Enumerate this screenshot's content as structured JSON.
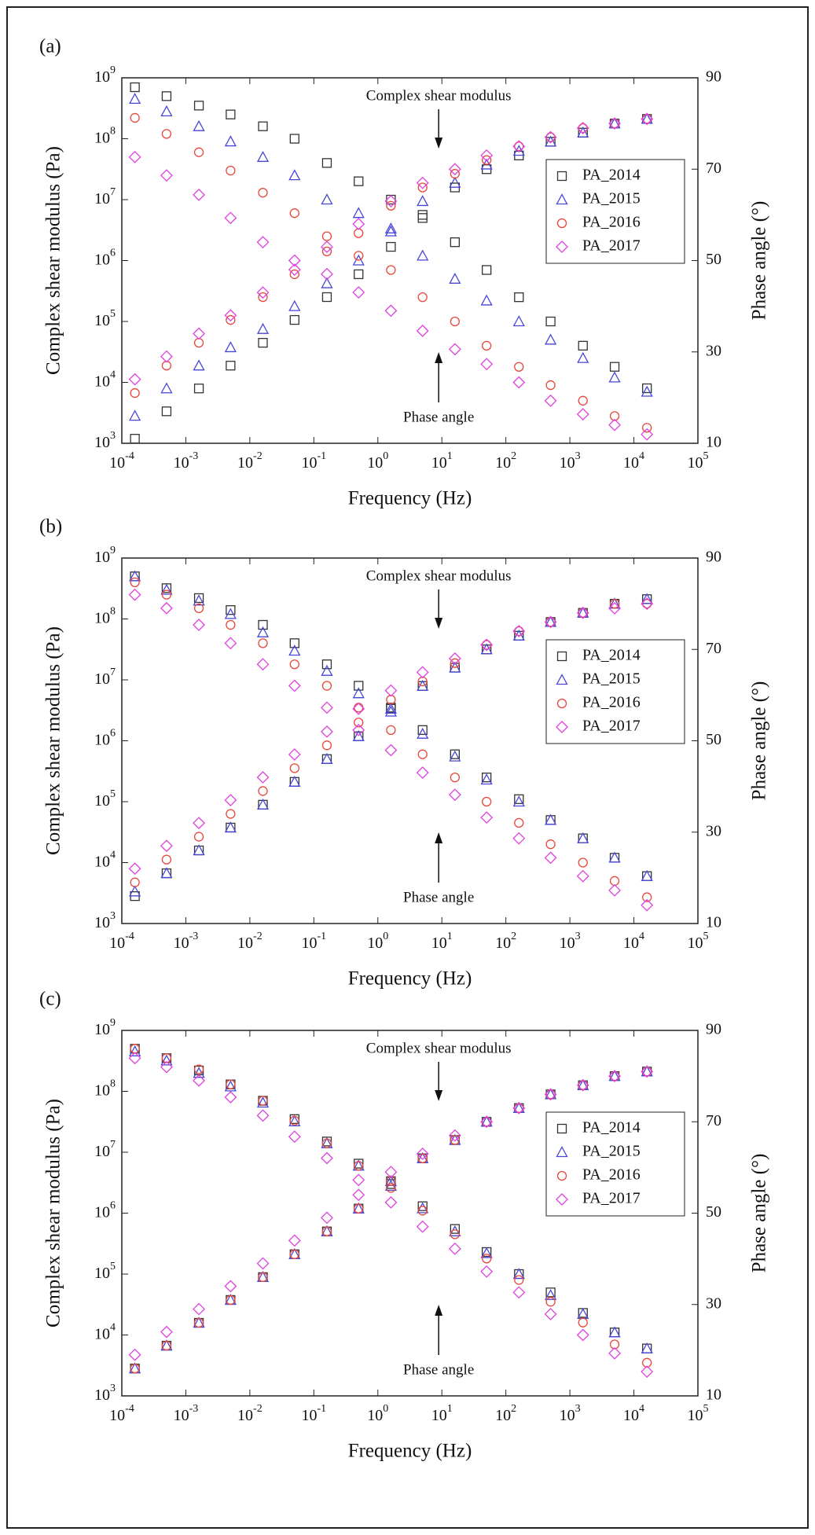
{
  "chart_data": [
    {
      "type": "scatter",
      "panel_label": "(a)",
      "x_label": "Frequency (Hz)",
      "y_label": "Complex shear modulus (Pa)",
      "y2_label": "Phase angle (°)",
      "annotations": [
        "Complex shear modulus",
        "Phase angle"
      ],
      "log_x": true,
      "log_y": true,
      "legend": "right",
      "xlim": [
        0.0001,
        100000
      ],
      "ylim": [
        1000,
        1000000000
      ],
      "y2lim": [
        10,
        90
      ],
      "xticks": [
        {
          "value": 0.0001,
          "label": "10^-4"
        },
        {
          "value": 0.001,
          "label": "10^-3"
        },
        {
          "value": 0.01,
          "label": "10^-2"
        },
        {
          "value": 0.1,
          "label": "10^-1"
        },
        {
          "value": 1,
          "label": "10^0"
        },
        {
          "value": 10,
          "label": "10^1"
        },
        {
          "value": 100,
          "label": "10^2"
        },
        {
          "value": 1000,
          "label": "10^3"
        },
        {
          "value": 10000,
          "label": "10^4"
        },
        {
          "value": 100000,
          "label": "10^5"
        }
      ],
      "yticks": [
        {
          "value": 1000,
          "label": "10^3"
        },
        {
          "value": 10000,
          "label": "10^4"
        },
        {
          "value": 100000,
          "label": "10^5"
        },
        {
          "value": 1000000,
          "label": "10^6"
        },
        {
          "value": 10000000,
          "label": "10^7"
        },
        {
          "value": 100000000,
          "label": "10^8"
        },
        {
          "value": 1000000000,
          "label": "10^9"
        }
      ],
      "y2ticks": [
        10,
        30,
        50,
        70,
        90
      ],
      "x": [
        0.00016,
        0.0005,
        0.0016,
        0.005,
        0.016,
        0.05,
        0.16,
        0.5,
        1.6,
        5,
        16,
        50,
        160,
        500,
        1600,
        5000,
        16000
      ],
      "series": [
        {
          "name": "PA_2014",
          "color": "#333333",
          "marker": "square",
          "values": [
            700000000,
            500000000,
            350000000,
            250000000,
            160000000,
            100000000,
            40000000,
            20000000,
            10000000,
            5000000,
            2000000,
            700000,
            250000,
            100000,
            40000,
            18000,
            8000
          ],
          "values_y2": [
            11,
            17,
            22,
            27,
            32,
            37,
            42,
            47,
            53,
            60,
            66,
            70,
            73,
            76,
            78,
            80,
            81
          ]
        },
        {
          "name": "PA_2015",
          "color": "#4646d8",
          "marker": "triangle",
          "values": [
            450000000,
            280000000,
            160000000,
            90000000,
            50000000,
            25000000,
            10000000,
            6000000,
            3000000,
            1200000,
            500000,
            220000,
            100000,
            50000,
            25000,
            12000,
            7000
          ],
          "values_y2": [
            16,
            22,
            27,
            31,
            35,
            40,
            45,
            50,
            57,
            63,
            67,
            71,
            74,
            76,
            78,
            80,
            81
          ]
        },
        {
          "name": "PA_2016",
          "color": "#e8463a",
          "marker": "circle",
          "values": [
            220000000,
            120000000,
            60000000,
            30000000,
            13000000,
            6000000,
            2500000,
            1200000,
            700000,
            250000,
            100000,
            40000,
            18000,
            9000,
            5000,
            2800,
            1800
          ],
          "values_y2": [
            21,
            27,
            32,
            37,
            42,
            47,
            52,
            56,
            62,
            66,
            69,
            72,
            75,
            77,
            79,
            80,
            81
          ]
        },
        {
          "name": "PA_2017",
          "color": "#e040e0",
          "marker": "diamond",
          "values": [
            50000000,
            25000000,
            12000000,
            5000000,
            2000000,
            1000000,
            600000,
            300000,
            150000,
            70000,
            35000,
            20000,
            10000,
            5000,
            3000,
            2000,
            1400
          ],
          "values_y2": [
            24,
            29,
            34,
            38,
            43,
            48,
            53,
            58,
            63,
            67,
            70,
            73,
            75,
            77,
            79,
            80,
            81
          ]
        }
      ]
    },
    {
      "type": "scatter",
      "panel_label": "(b)",
      "x_label": "Frequency (Hz)",
      "y_label": "Complex shear modulus (Pa)",
      "y2_label": "Phase angle (°)",
      "annotations": [
        "Complex shear modulus",
        "Phase angle"
      ],
      "log_x": true,
      "log_y": true,
      "legend": "right",
      "xlim": [
        0.0001,
        100000
      ],
      "ylim": [
        1000,
        1000000000
      ],
      "y2lim": [
        10,
        90
      ],
      "xticks": [
        {
          "value": 0.0001,
          "label": "10^-4"
        },
        {
          "value": 0.001,
          "label": "10^-3"
        },
        {
          "value": 0.01,
          "label": "10^-2"
        },
        {
          "value": 0.1,
          "label": "10^-1"
        },
        {
          "value": 1,
          "label": "10^0"
        },
        {
          "value": 10,
          "label": "10^1"
        },
        {
          "value": 100,
          "label": "10^2"
        },
        {
          "value": 1000,
          "label": "10^3"
        },
        {
          "value": 10000,
          "label": "10^4"
        },
        {
          "value": 100000,
          "label": "10^5"
        }
      ],
      "yticks": [
        {
          "value": 1000,
          "label": "10^3"
        },
        {
          "value": 10000,
          "label": "10^4"
        },
        {
          "value": 100000,
          "label": "10^5"
        },
        {
          "value": 1000000,
          "label": "10^6"
        },
        {
          "value": 10000000,
          "label": "10^7"
        },
        {
          "value": 100000000,
          "label": "10^8"
        },
        {
          "value": 1000000000,
          "label": "10^9"
        }
      ],
      "y2ticks": [
        10,
        30,
        50,
        70,
        90
      ],
      "x": [
        0.00016,
        0.0005,
        0.0016,
        0.005,
        0.016,
        0.05,
        0.16,
        0.5,
        1.6,
        5,
        16,
        50,
        160,
        500,
        1600,
        5000,
        16000
      ],
      "series": [
        {
          "name": "PA_2014",
          "color": "#333333",
          "marker": "square",
          "values": [
            500000000,
            320000000,
            220000000,
            140000000,
            80000000,
            40000000,
            18000000,
            8000000,
            3500000,
            1500000,
            600000,
            250000,
            110000,
            50000,
            25000,
            12000,
            6000
          ],
          "values_y2": [
            16,
            21,
            26,
            31,
            36,
            41,
            46,
            51,
            57,
            62,
            66,
            70,
            73,
            76,
            78,
            80,
            81
          ]
        },
        {
          "name": "PA_2015",
          "color": "#4646d8",
          "marker": "triangle",
          "values": [
            500000000,
            300000000,
            200000000,
            120000000,
            60000000,
            30000000,
            14000000,
            6000000,
            3000000,
            1300000,
            550000,
            230000,
            100000,
            50000,
            25000,
            12000,
            6000
          ],
          "values_y2": [
            17,
            21,
            26,
            31,
            36,
            41,
            46,
            51,
            57,
            62,
            66,
            70,
            73,
            76,
            78,
            80,
            81
          ]
        },
        {
          "name": "PA_2016",
          "color": "#e8463a",
          "marker": "circle",
          "values": [
            400000000,
            250000000,
            150000000,
            80000000,
            40000000,
            18000000,
            8000000,
            3500000,
            1500000,
            600000,
            250000,
            100000,
            45000,
            20000,
            10000,
            5000,
            2700
          ],
          "values_y2": [
            19,
            24,
            29,
            34,
            39,
            44,
            49,
            54,
            59,
            63,
            67,
            71,
            74,
            76,
            78,
            80,
            80
          ]
        },
        {
          "name": "PA_2017",
          "color": "#e040e0",
          "marker": "diamond",
          "values": [
            250000000,
            150000000,
            80000000,
            40000000,
            18000000,
            8000000,
            3500000,
            1500000,
            700000,
            300000,
            130000,
            55000,
            25000,
            12000,
            6000,
            3500,
            2000
          ],
          "values_y2": [
            22,
            27,
            32,
            37,
            42,
            47,
            52,
            57,
            61,
            65,
            68,
            71,
            74,
            76,
            78,
            79,
            80
          ]
        }
      ]
    },
    {
      "type": "scatter",
      "panel_label": "(c)",
      "x_label": "Frequency (Hz)",
      "y_label": "Complex shear modulus (Pa)",
      "y2_label": "Phase angle (°)",
      "annotations": [
        "Complex shear modulus",
        "Phase angle"
      ],
      "log_x": true,
      "log_y": true,
      "legend": "right",
      "xlim": [
        0.0001,
        100000
      ],
      "ylim": [
        1000,
        1000000000
      ],
      "y2lim": [
        10,
        90
      ],
      "xticks": [
        {
          "value": 0.0001,
          "label": "10^-4"
        },
        {
          "value": 0.001,
          "label": "10^-3"
        },
        {
          "value": 0.01,
          "label": "10^-2"
        },
        {
          "value": 0.1,
          "label": "10^-1"
        },
        {
          "value": 1,
          "label": "10^0"
        },
        {
          "value": 10,
          "label": "10^1"
        },
        {
          "value": 100,
          "label": "10^2"
        },
        {
          "value": 1000,
          "label": "10^3"
        },
        {
          "value": 10000,
          "label": "10^4"
        },
        {
          "value": 100000,
          "label": "10^5"
        }
      ],
      "yticks": [
        {
          "value": 1000,
          "label": "10^3"
        },
        {
          "value": 10000,
          "label": "10^4"
        },
        {
          "value": 100000,
          "label": "10^5"
        },
        {
          "value": 1000000,
          "label": "10^6"
        },
        {
          "value": 10000000,
          "label": "10^7"
        },
        {
          "value": 100000000,
          "label": "10^8"
        },
        {
          "value": 1000000000,
          "label": "10^9"
        }
      ],
      "y2ticks": [
        10,
        30,
        50,
        70,
        90
      ],
      "x": [
        0.00016,
        0.0005,
        0.0016,
        0.005,
        0.016,
        0.05,
        0.16,
        0.5,
        1.6,
        5,
        16,
        50,
        160,
        500,
        1600,
        5000,
        16000
      ],
      "series": [
        {
          "name": "PA_2014",
          "color": "#333333",
          "marker": "square",
          "values": [
            500000000,
            350000000,
            220000000,
            130000000,
            70000000,
            35000000,
            15000000,
            6500000,
            3000000,
            1300000,
            550000,
            230000,
            100000,
            50000,
            23000,
            11000,
            6000
          ],
          "values_y2": [
            16,
            21,
            26,
            31,
            36,
            41,
            46,
            51,
            57,
            62,
            66,
            70,
            73,
            76,
            78,
            80,
            81
          ]
        },
        {
          "name": "PA_2015",
          "color": "#4646d8",
          "marker": "triangle",
          "values": [
            450000000,
            320000000,
            200000000,
            120000000,
            65000000,
            32000000,
            14000000,
            6000000,
            2800000,
            1200000,
            500000,
            220000,
            100000,
            45000,
            22000,
            11000,
            6000
          ],
          "values_y2": [
            16,
            21,
            26,
            31,
            36,
            41,
            46,
            51,
            57,
            62,
            66,
            70,
            73,
            76,
            78,
            80,
            81
          ]
        },
        {
          "name": "PA_2016",
          "color": "#e8463a",
          "marker": "circle",
          "values": [
            500000000,
            350000000,
            230000000,
            130000000,
            70000000,
            33000000,
            14000000,
            6000000,
            2600000,
            1100000,
            450000,
            180000,
            80000,
            35000,
            16000,
            7000,
            3500
          ],
          "values_y2": [
            16,
            21,
            26,
            31,
            36,
            41,
            46,
            51,
            57,
            62,
            66,
            70,
            73,
            76,
            78,
            80,
            81
          ]
        },
        {
          "name": "PA_2017",
          "color": "#e040e0",
          "marker": "diamond",
          "values": [
            350000000,
            250000000,
            150000000,
            80000000,
            40000000,
            18000000,
            8000000,
            3500000,
            1500000,
            600000,
            260000,
            110000,
            50000,
            22000,
            10000,
            5000,
            2500
          ],
          "values_y2": [
            19,
            24,
            29,
            34,
            39,
            44,
            49,
            54,
            59,
            63,
            67,
            70,
            73,
            76,
            78,
            80,
            81
          ]
        }
      ]
    }
  ]
}
